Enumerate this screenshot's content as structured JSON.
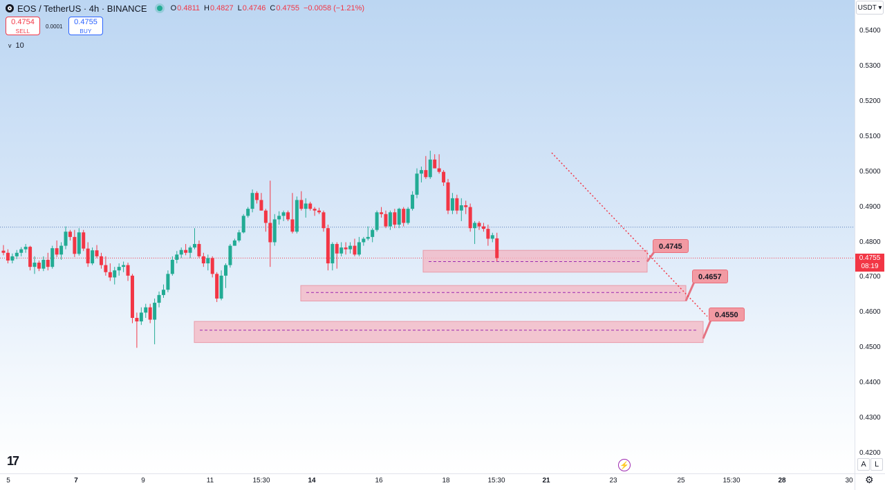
{
  "header": {
    "title": "EOS / TetherUS · 4h · BINANCE",
    "ohlc": [
      {
        "k": "O",
        "v": "0.4811"
      },
      {
        "k": "H",
        "v": "0.4827"
      },
      {
        "k": "L",
        "v": "0.4746"
      },
      {
        "k": "C",
        "v": "0.4755"
      },
      {
        "k": "",
        "v": "−0.0058 (−1.21%)"
      }
    ]
  },
  "trade": {
    "sell_price": "0.4754",
    "sell_label": "SELL",
    "spread": "0.0001",
    "buy_price": "0.4755",
    "buy_label": "BUY"
  },
  "interval": {
    "chevron": "v",
    "count": "10"
  },
  "currency": "USDT ▾",
  "price_tag": {
    "price": "0.4755",
    "countdown": "08:19"
  },
  "levels": [
    "0.4745",
    "0.4657",
    "0.4550"
  ],
  "colors": {
    "up": "#22ab94",
    "down": "#f23645",
    "zone": "#f4b6c2",
    "zone_line": "#9c27b0"
  },
  "bottom": {
    "logo": "17",
    "btn_a": "A",
    "btn_l": "L",
    "flash_icon": "⚡",
    "settings_icon": "⚙"
  },
  "chart_data": {
    "type": "candlestick",
    "symbol": "EOS / TetherUS",
    "interval": "4h",
    "exchange": "BINANCE",
    "y_ticks": [
      "0.5400",
      "0.5300",
      "0.5200",
      "0.5100",
      "0.5000",
      "0.4900",
      "0.4800",
      "0.4700",
      "0.4600",
      "0.4500",
      "0.4400",
      "0.4300",
      "0.4200"
    ],
    "ylim": [
      0.42,
      0.541
    ],
    "x_ticks": [
      {
        "label": "5",
        "bold": false
      },
      {
        "label": "7",
        "bold": true
      },
      {
        "label": "9",
        "bold": false
      },
      {
        "label": "11",
        "bold": false
      },
      {
        "label": "15:30",
        "bold": false
      },
      {
        "label": "14",
        "bold": true
      },
      {
        "label": "16",
        "bold": false
      },
      {
        "label": "18",
        "bold": false
      },
      {
        "label": "15:30",
        "bold": false
      },
      {
        "label": "21",
        "bold": true
      },
      {
        "label": "23",
        "bold": false
      },
      {
        "label": "25",
        "bold": false
      },
      {
        "label": "15:30",
        "bold": false
      },
      {
        "label": "28",
        "bold": true
      },
      {
        "label": "30",
        "bold": false
      }
    ],
    "candles": [
      [
        0.4776,
        0.4792,
        0.4763,
        0.477
      ],
      [
        0.477,
        0.478,
        0.474,
        0.4748
      ],
      [
        0.4748,
        0.4768,
        0.474,
        0.476
      ],
      [
        0.476,
        0.4778,
        0.4752,
        0.477
      ],
      [
        0.477,
        0.4786,
        0.476,
        0.478
      ],
      [
        0.478,
        0.4795,
        0.477,
        0.4787
      ],
      [
        0.4787,
        0.479,
        0.472,
        0.473
      ],
      [
        0.473,
        0.476,
        0.471,
        0.4742
      ],
      [
        0.4742,
        0.4748,
        0.4718,
        0.4725
      ],
      [
        0.4725,
        0.476,
        0.4718,
        0.475
      ],
      [
        0.475,
        0.477,
        0.472,
        0.473
      ],
      [
        0.473,
        0.479,
        0.4725,
        0.4783
      ],
      [
        0.4783,
        0.4805,
        0.4758,
        0.4765
      ],
      [
        0.4765,
        0.48,
        0.475,
        0.479
      ],
      [
        0.479,
        0.4845,
        0.478,
        0.483
      ],
      [
        0.483,
        0.4835,
        0.4805,
        0.4815
      ],
      [
        0.4815,
        0.4835,
        0.4758,
        0.4767
      ],
      [
        0.4767,
        0.484,
        0.4762,
        0.4828
      ],
      [
        0.4828,
        0.4835,
        0.4775,
        0.4782
      ],
      [
        0.4782,
        0.48,
        0.473,
        0.474
      ],
      [
        0.474,
        0.4785,
        0.4735,
        0.4777
      ],
      [
        0.4777,
        0.4792,
        0.4755,
        0.476
      ],
      [
        0.476,
        0.477,
        0.4725,
        0.4735
      ],
      [
        0.4735,
        0.476,
        0.4705,
        0.4715
      ],
      [
        0.4715,
        0.474,
        0.469,
        0.47
      ],
      [
        0.47,
        0.473,
        0.468,
        0.472
      ],
      [
        0.472,
        0.474,
        0.4705,
        0.473
      ],
      [
        0.473,
        0.4745,
        0.4715,
        0.4735
      ],
      [
        0.4735,
        0.4742,
        0.469,
        0.4705
      ],
      [
        0.4705,
        0.471,
        0.457,
        0.4585
      ],
      [
        0.4585,
        0.46,
        0.45,
        0.4575
      ],
      [
        0.4575,
        0.4615,
        0.4565,
        0.46
      ],
      [
        0.46,
        0.4625,
        0.4585,
        0.4615
      ],
      [
        0.4615,
        0.4625,
        0.457,
        0.458
      ],
      [
        0.458,
        0.464,
        0.451,
        0.4628
      ],
      [
        0.4628,
        0.466,
        0.4615,
        0.465
      ],
      [
        0.465,
        0.468,
        0.4642,
        0.4665
      ],
      [
        0.4665,
        0.472,
        0.4658,
        0.471
      ],
      [
        0.471,
        0.476,
        0.4705,
        0.475
      ],
      [
        0.475,
        0.4775,
        0.474,
        0.4765
      ],
      [
        0.4765,
        0.4785,
        0.4755,
        0.4778
      ],
      [
        0.4778,
        0.4795,
        0.4763,
        0.477
      ],
      [
        0.477,
        0.479,
        0.4755,
        0.4785
      ],
      [
        0.4785,
        0.484,
        0.478,
        0.4795
      ],
      [
        0.4795,
        0.4805,
        0.4755,
        0.476
      ],
      [
        0.476,
        0.477,
        0.473,
        0.474
      ],
      [
        0.474,
        0.4765,
        0.472,
        0.4755
      ],
      [
        0.4755,
        0.476,
        0.47,
        0.471
      ],
      [
        0.471,
        0.4715,
        0.463,
        0.464
      ],
      [
        0.464,
        0.472,
        0.4635,
        0.4705
      ],
      [
        0.4705,
        0.474,
        0.467,
        0.4735
      ],
      [
        0.4735,
        0.4795,
        0.4728,
        0.479
      ],
      [
        0.479,
        0.481,
        0.479,
        0.4805
      ],
      [
        0.4805,
        0.4835,
        0.48,
        0.4828
      ],
      [
        0.4828,
        0.488,
        0.4825,
        0.4875
      ],
      [
        0.4875,
        0.49,
        0.487,
        0.4895
      ],
      [
        0.4895,
        0.495,
        0.4885,
        0.494
      ],
      [
        0.494,
        0.4945,
        0.491,
        0.492
      ],
      [
        0.492,
        0.494,
        0.489,
        0.489
      ],
      [
        0.489,
        0.4895,
        0.483,
        0.4855
      ],
      [
        0.4855,
        0.4975,
        0.473,
        0.48
      ],
      [
        0.48,
        0.488,
        0.479,
        0.4865
      ],
      [
        0.4865,
        0.4888,
        0.485,
        0.4875
      ],
      [
        0.4875,
        0.489,
        0.486,
        0.4885
      ],
      [
        0.4885,
        0.489,
        0.486,
        0.4865
      ],
      [
        0.4865,
        0.494,
        0.4825,
        0.483
      ],
      [
        0.483,
        0.493,
        0.4825,
        0.492
      ],
      [
        0.492,
        0.4945,
        0.489,
        0.4895
      ],
      [
        0.4895,
        0.4925,
        0.487,
        0.491
      ],
      [
        0.491,
        0.4915,
        0.489,
        0.4895
      ],
      [
        0.4895,
        0.49,
        0.4875,
        0.489
      ],
      [
        0.489,
        0.4898,
        0.488,
        0.4885
      ],
      [
        0.4885,
        0.489,
        0.483,
        0.484
      ],
      [
        0.484,
        0.485,
        0.472,
        0.474
      ],
      [
        0.474,
        0.48,
        0.472,
        0.4795
      ],
      [
        0.4795,
        0.48,
        0.4725,
        0.4768
      ],
      [
        0.4768,
        0.48,
        0.476,
        0.4785
      ],
      [
        0.4785,
        0.48,
        0.4765,
        0.478
      ],
      [
        0.478,
        0.48,
        0.4768,
        0.479
      ],
      [
        0.479,
        0.481,
        0.476,
        0.4765
      ],
      [
        0.4765,
        0.4815,
        0.476,
        0.48
      ],
      [
        0.48,
        0.4815,
        0.479,
        0.481
      ],
      [
        0.481,
        0.4845,
        0.4805,
        0.4815
      ],
      [
        0.4815,
        0.484,
        0.48,
        0.4835
      ],
      [
        0.4835,
        0.489,
        0.483,
        0.4885
      ],
      [
        0.4885,
        0.49,
        0.487,
        0.488
      ],
      [
        0.488,
        0.489,
        0.484,
        0.4845
      ],
      [
        0.4845,
        0.489,
        0.4835,
        0.4885
      ],
      [
        0.4885,
        0.4895,
        0.484,
        0.485
      ],
      [
        0.485,
        0.4898,
        0.484,
        0.4895
      ],
      [
        0.4895,
        0.49,
        0.4845,
        0.4855
      ],
      [
        0.4855,
        0.49,
        0.485,
        0.4895
      ],
      [
        0.4895,
        0.4945,
        0.489,
        0.4935
      ],
      [
        0.4935,
        0.501,
        0.4925,
        0.4995
      ],
      [
        0.4995,
        0.5015,
        0.497,
        0.5005
      ],
      [
        0.5005,
        0.5045,
        0.498,
        0.4985
      ],
      [
        0.4985,
        0.506,
        0.498,
        0.5035
      ],
      [
        0.5035,
        0.505,
        0.501,
        0.501
      ],
      [
        0.501,
        0.505,
        0.4995,
        0.5
      ],
      [
        0.5,
        0.5005,
        0.496,
        0.497
      ],
      [
        0.497,
        0.498,
        0.488,
        0.489
      ],
      [
        0.489,
        0.494,
        0.488,
        0.4925
      ],
      [
        0.4925,
        0.4935,
        0.488,
        0.489
      ],
      [
        0.489,
        0.4925,
        0.486,
        0.4905
      ],
      [
        0.4905,
        0.4918,
        0.488,
        0.49
      ],
      [
        0.49,
        0.491,
        0.483,
        0.484
      ],
      [
        0.484,
        0.486,
        0.4795,
        0.4855
      ],
      [
        0.4855,
        0.486,
        0.4835,
        0.4845
      ],
      [
        0.4845,
        0.4855,
        0.483,
        0.4838
      ],
      [
        0.4838,
        0.485,
        0.479,
        0.481
      ],
      [
        0.481,
        0.4827,
        0.48,
        0.482
      ],
      [
        0.4811,
        0.4827,
        0.4746,
        0.4755
      ]
    ],
    "horizontal_lines": [
      0.4843,
      0.4755
    ],
    "zones": [
      {
        "label": "0.4745",
        "top": 0.4777,
        "bottom": 0.4715,
        "mid": 0.4745
      },
      {
        "label": "0.4657",
        "top": 0.4677,
        "bottom": 0.4633,
        "mid": 0.4657
      },
      {
        "label": "0.4550",
        "top": 0.4575,
        "bottom": 0.4515,
        "mid": 0.455
      }
    ],
    "trendline": {
      "from": [
        0.506,
        0.455
      ]
    },
    "current_price": 0.4755
  }
}
